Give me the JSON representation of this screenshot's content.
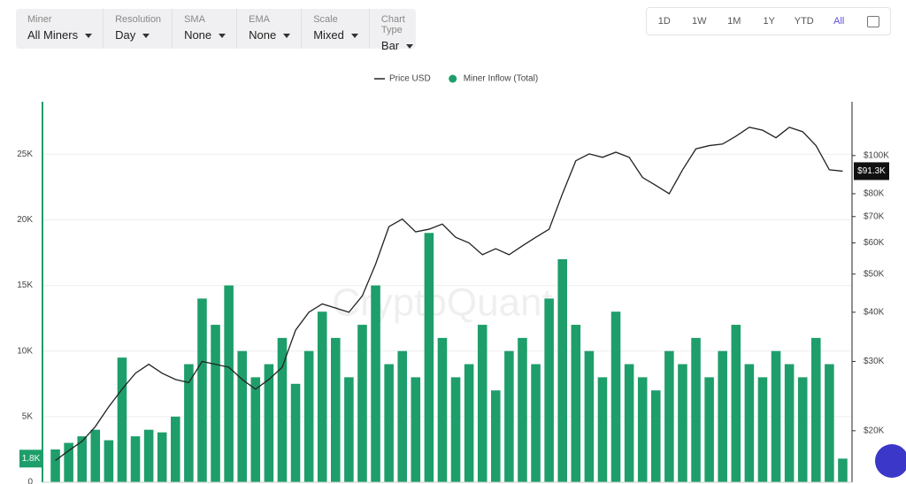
{
  "controls": [
    {
      "label": "Miner",
      "value": "All Miners"
    },
    {
      "label": "Resolution",
      "value": "Day"
    },
    {
      "label": "SMA",
      "value": "None"
    },
    {
      "label": "EMA",
      "value": "None"
    },
    {
      "label": "Scale",
      "value": "Mixed"
    },
    {
      "label": "Chart Type",
      "value": "Bar"
    }
  ],
  "ranges": [
    "1D",
    "1W",
    "1M",
    "1Y",
    "YTD",
    "All"
  ],
  "chart_data": {
    "type": "bar",
    "watermark": "CryptoQuant",
    "series": [
      {
        "name": "Price USD",
        "type": "line",
        "axis": "y2",
        "color": "#222222",
        "values": [
          16800,
          17800,
          18800,
          20500,
          23000,
          25500,
          28000,
          29500,
          28000,
          27000,
          26500,
          30000,
          29500,
          29000,
          27000,
          25500,
          27000,
          29000,
          36000,
          40000,
          42000,
          41000,
          40000,
          44000,
          53000,
          66000,
          69000,
          64000,
          65000,
          67000,
          62000,
          60000,
          56000,
          58000,
          56000,
          59000,
          62000,
          65000,
          80000,
          97000,
          101000,
          99000,
          102000,
          99000,
          88000,
          84000,
          80000,
          92000,
          104000,
          106000,
          107000,
          112000,
          118000,
          116000,
          111000,
          118000,
          115000,
          106000,
          92000,
          91300
        ]
      },
      {
        "name": "Miner Inflow (Total)",
        "type": "bar",
        "color": "#1e9e6a",
        "values": [
          2500,
          3000,
          3500,
          4000,
          3200,
          9500,
          3500,
          4000,
          3800,
          5000,
          9000,
          14000,
          12000,
          15000,
          10000,
          8000,
          9000,
          11000,
          7500,
          10000,
          13000,
          11000,
          8000,
          12000,
          15000,
          9000,
          10000,
          8000,
          19000,
          11000,
          8000,
          9000,
          12000,
          7000,
          10000,
          11000,
          9000,
          14000,
          17000,
          12000,
          10000,
          8000,
          13000,
          9000,
          8000,
          7000,
          10000,
          9000,
          11000,
          8000,
          10000,
          12000,
          9000,
          8000,
          10000,
          9000,
          8000,
          11000,
          9000,
          1800
        ]
      }
    ],
    "current_value": {
      "value": 1800,
      "label": "1.8K"
    },
    "current_price": {
      "value": 91300,
      "label": "$91.3K"
    },
    "ylim": [
      0,
      29000
    ],
    "yticks": [
      0,
      {
        "value": 5000,
        "label": "5K"
      },
      {
        "value": 10000,
        "label": "10K"
      },
      {
        "value": 15000,
        "label": "15K"
      },
      {
        "value": 20000,
        "label": "20K"
      },
      {
        "value": 25000,
        "label": "25K"
      }
    ],
    "y2lim": [
      14800,
      137000
    ],
    "y2log": true,
    "y2ticks": [
      {
        "value": 20000,
        "label": "$20K"
      },
      {
        "value": 30000,
        "label": "$30K"
      },
      {
        "value": 40000,
        "label": "$40K"
      },
      {
        "value": 50000,
        "label": "$50K"
      },
      {
        "value": 60000,
        "label": "$60K"
      },
      {
        "value": 70000,
        "label": "$70K"
      },
      {
        "value": 80000,
        "label": "$80K"
      },
      {
        "value": 100000,
        "label": "$100K"
      }
    ],
    "grid": true
  }
}
